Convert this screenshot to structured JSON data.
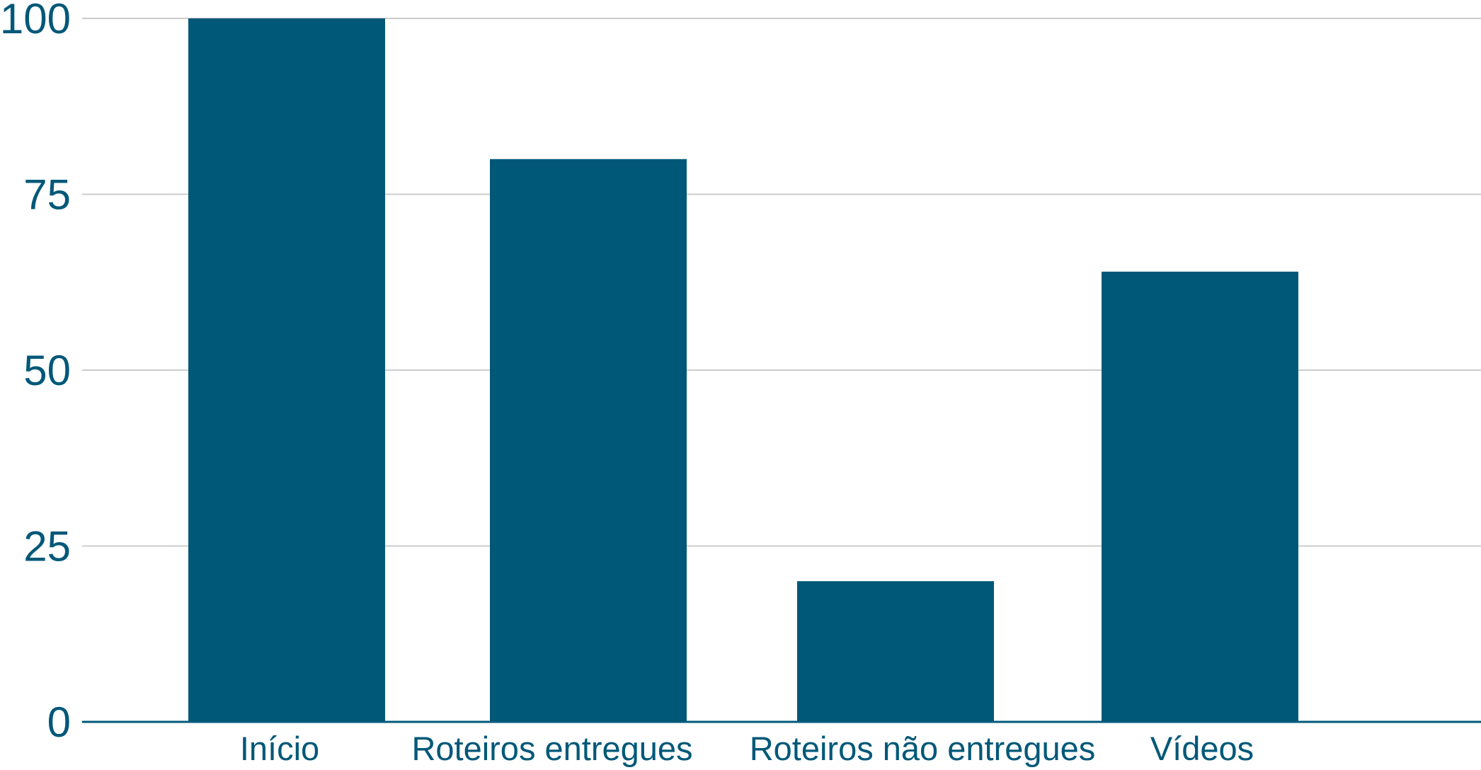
{
  "chart_data": {
    "type": "bar",
    "title": "",
    "xlabel": "",
    "ylabel": "",
    "categories": [
      "Início",
      "Roteiros entregues",
      "Roteiros não entregues",
      "Vídeos"
    ],
    "values": [
      100,
      80,
      20,
      64
    ],
    "ylim": [
      0,
      100
    ],
    "yticks": [
      0,
      25,
      50,
      75,
      100
    ],
    "grid": true,
    "legend": "none",
    "bar_color": "#005878",
    "text_color": "#005878",
    "grid_color": "#cccccc"
  }
}
